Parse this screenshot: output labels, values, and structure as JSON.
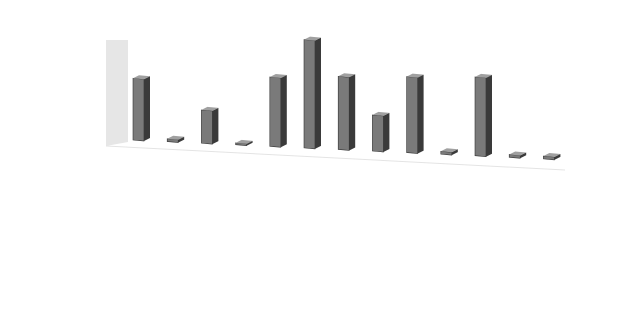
{
  "chart_data": {
    "type": "bar3d",
    "categories": [
      null,
      null,
      null,
      null,
      null,
      null,
      null,
      null,
      null,
      null,
      null,
      null,
      null
    ],
    "values": [
      65,
      3,
      35,
      2,
      73,
      114,
      77,
      38,
      80,
      3,
      83,
      3,
      3
    ],
    "color": "#7a7a7a",
    "ylim": [
      0,
      120
    ]
  }
}
